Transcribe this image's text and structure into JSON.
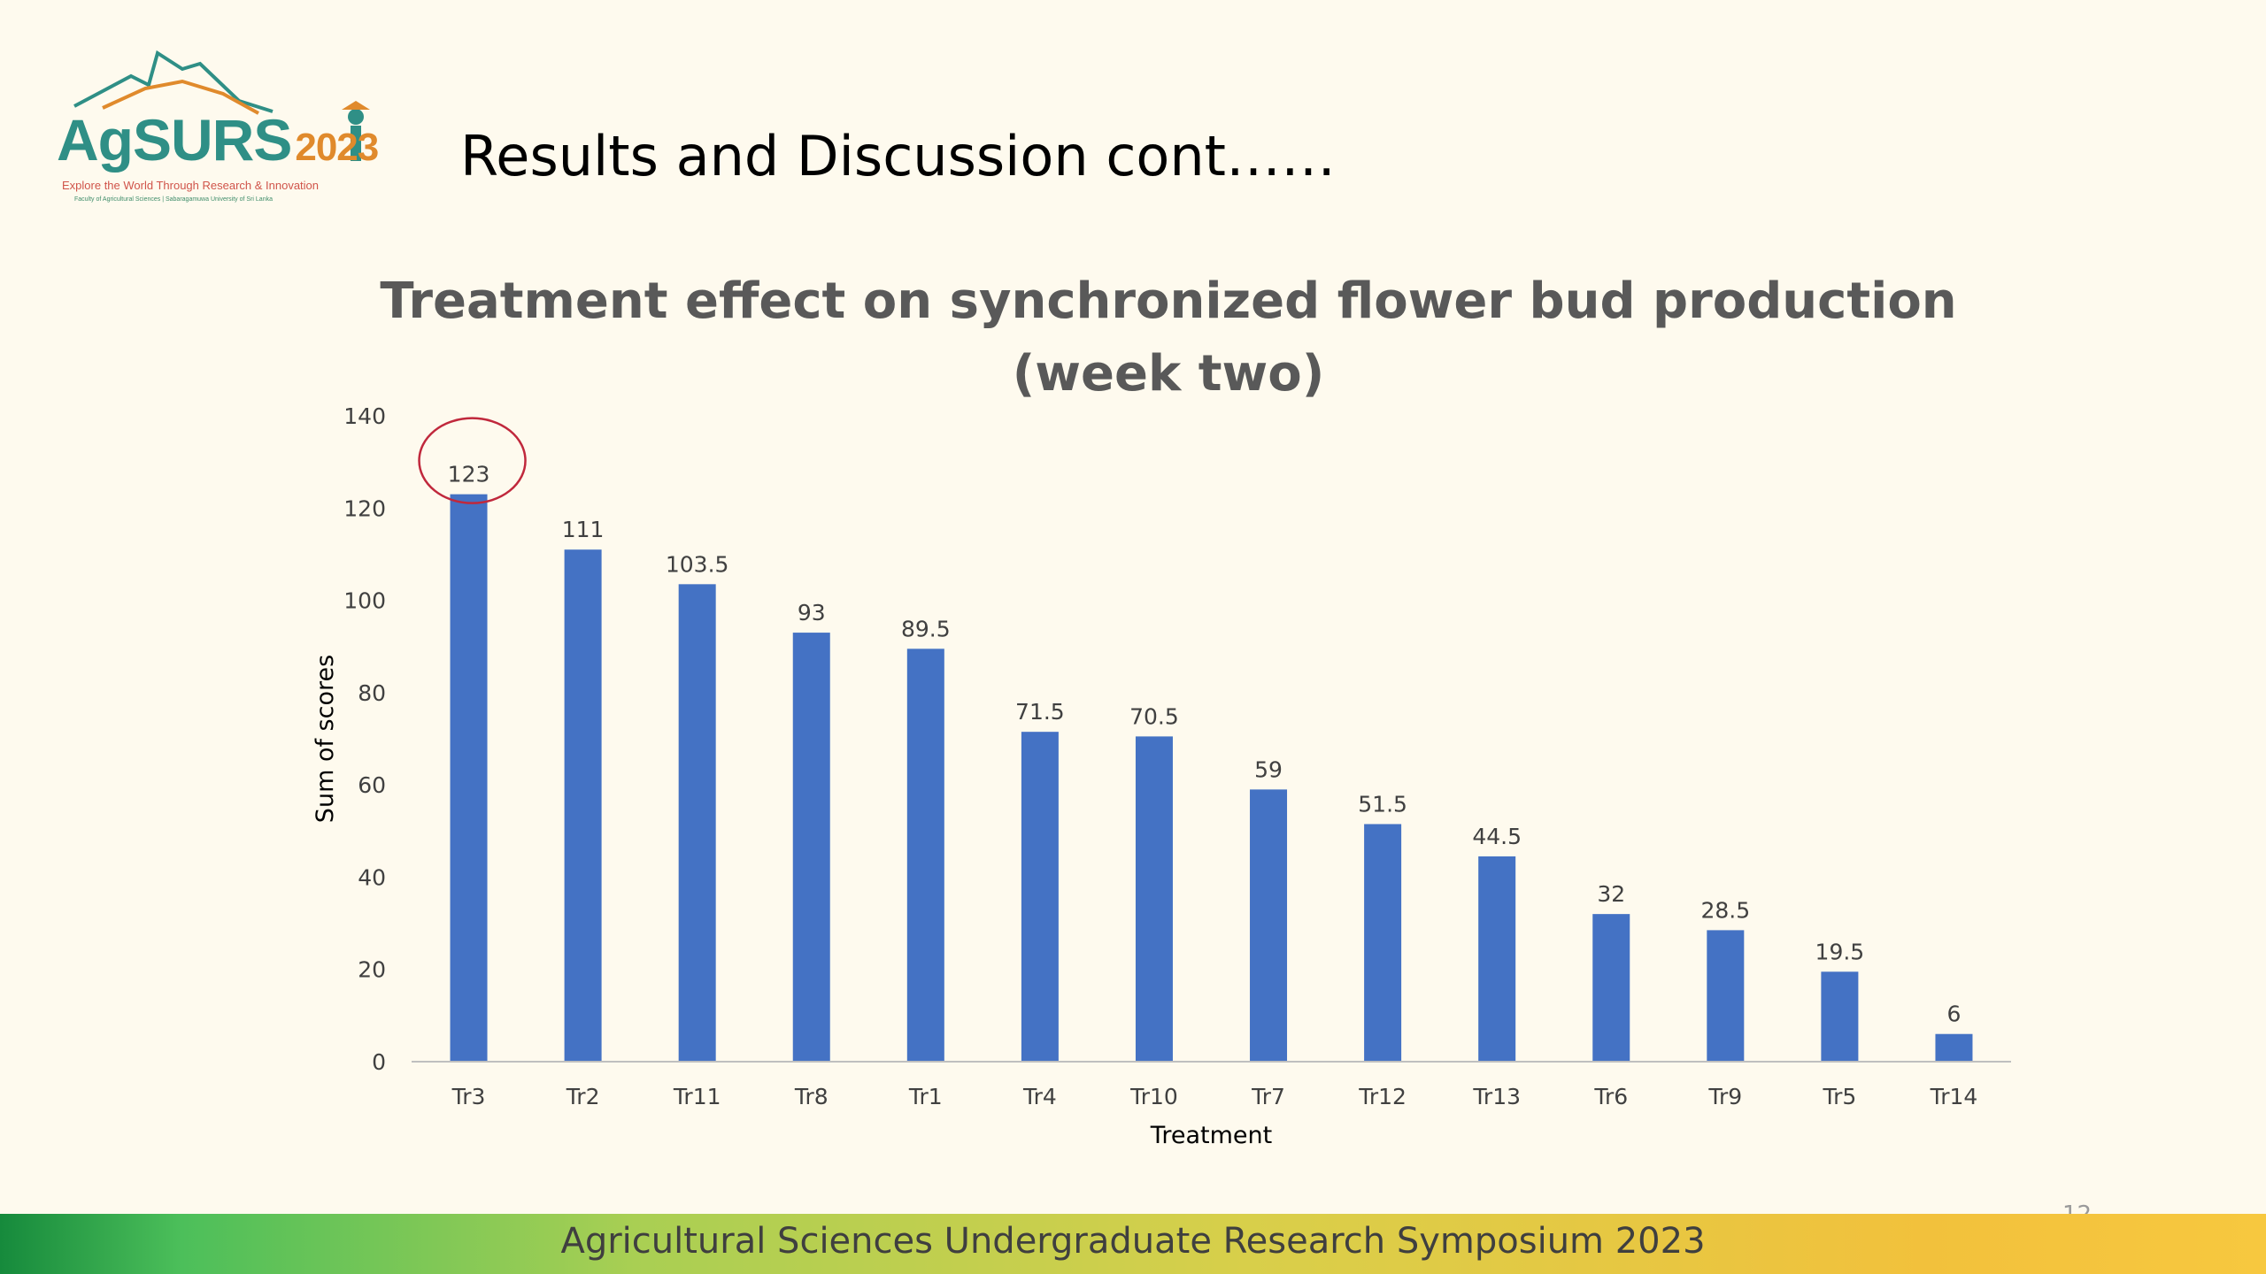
{
  "logo": {
    "word": "AgSURS",
    "year": "2023",
    "tagline": "Explore the World Through Research & Innovation",
    "subline": "Faculty of Agricultural Sciences | Sabaragamuwa University of Sri Lanka",
    "colors": {
      "teal": "#2f8f86",
      "orange": "#e08a2c",
      "red": "#d0544a"
    }
  },
  "slide": {
    "title": "Results and Discussion cont……",
    "footer": "Agricultural Sciences Undergraduate Research Symposium 2023",
    "page_number": "12"
  },
  "chart_data": {
    "type": "bar",
    "title_lines": [
      "Treatment effect on synchronized flower bud production",
      "(week two)"
    ],
    "xlabel": "Treatment",
    "ylabel": "Sum of scores",
    "categories": [
      "Tr3",
      "Tr2",
      "Tr11",
      "Tr8",
      "Tr1",
      "Tr4",
      "Tr10",
      "Tr7",
      "Tr12",
      "Tr13",
      "Tr6",
      "Tr9",
      "Tr5",
      "Tr14"
    ],
    "values": [
      123,
      111,
      103.5,
      93,
      89.5,
      71.5,
      70.5,
      59,
      51.5,
      44.5,
      32,
      28.5,
      19.5,
      6
    ],
    "data_labels": [
      "123",
      "111",
      "103.5",
      "93",
      "89.5",
      "71.5",
      "70.5",
      "59",
      "51.5",
      "44.5",
      "32",
      "28.5",
      "19.5",
      "6"
    ],
    "ylim": [
      0,
      140
    ],
    "yticks": [
      "0",
      "20",
      "40",
      "60",
      "80",
      "100",
      "120",
      "140"
    ],
    "grid": false,
    "bar_color": "#4472c4",
    "highlight": {
      "category": "Tr3",
      "shape": "circle",
      "color": "#c0283c"
    }
  }
}
